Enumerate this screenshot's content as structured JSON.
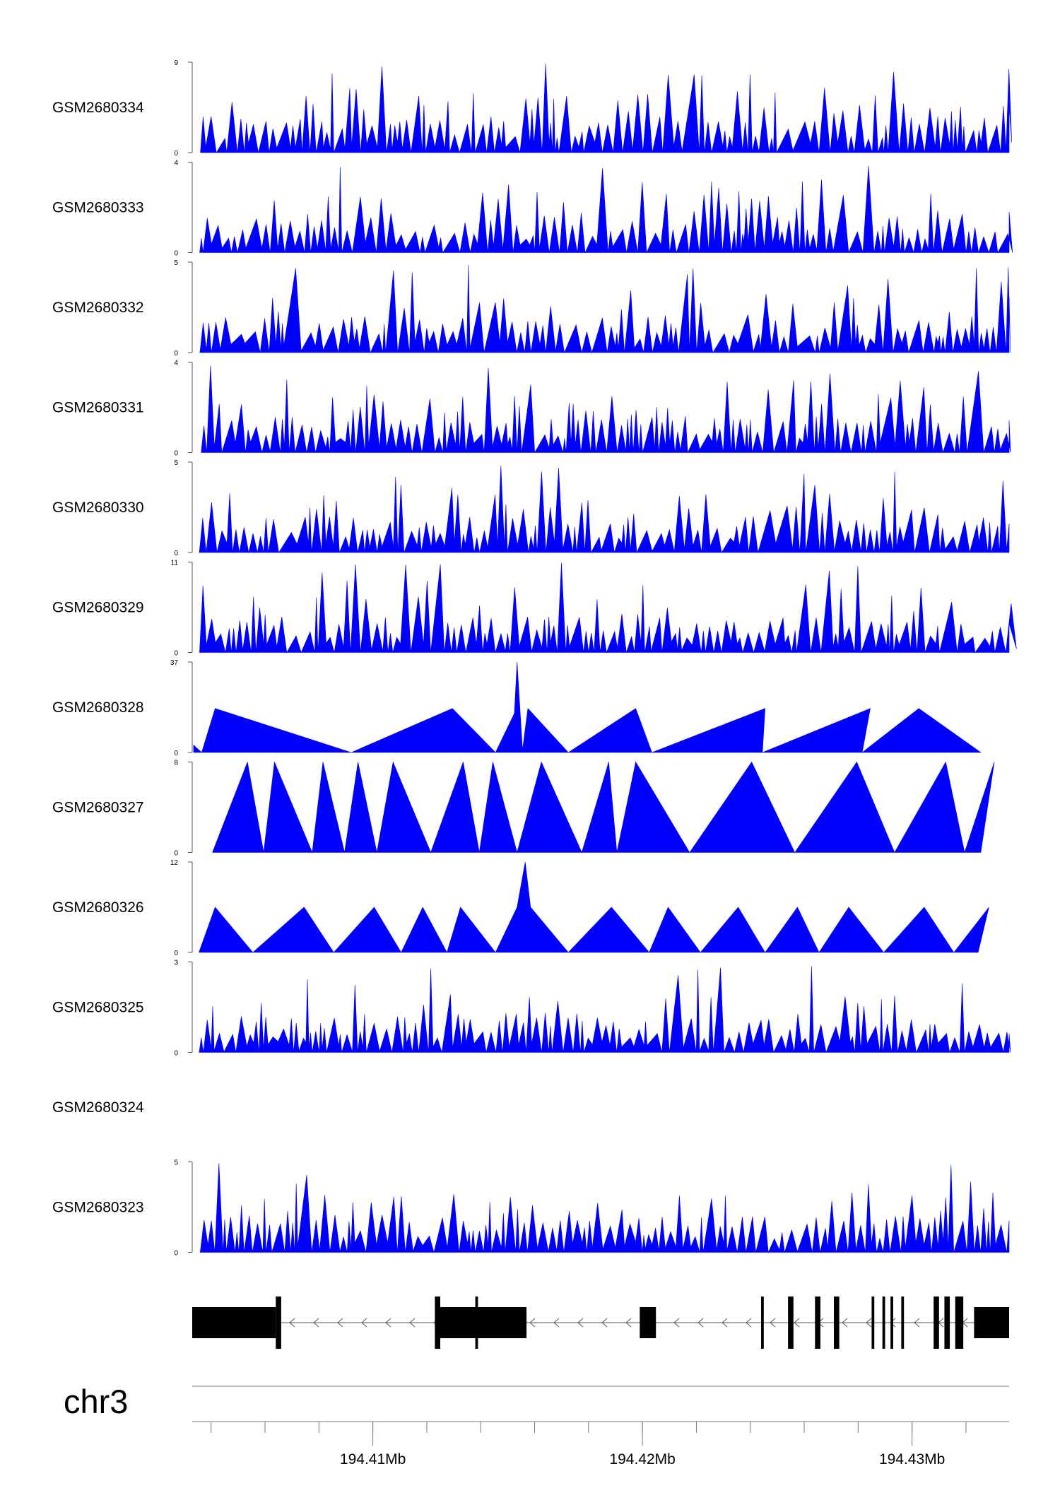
{
  "chart_data": {
    "type": "area",
    "title": "",
    "chromosome": "chr3",
    "x_range_mb": [
      194.4033,
      194.4336
    ],
    "x_tick_labels": [
      {
        "pos_mb": 194.41,
        "label": "194.41Mb"
      },
      {
        "pos_mb": 194.42,
        "label": "194.42Mb"
      },
      {
        "pos_mb": 194.43,
        "label": "194.43Mb"
      }
    ],
    "minor_ticks_mb": [
      194.404,
      194.406,
      194.408,
      194.41,
      194.412,
      194.414,
      194.416,
      194.418,
      194.42,
      194.422,
      194.424,
      194.426,
      194.428,
      194.43,
      194.432
    ],
    "fill_color": "#0000ff",
    "track_spacing_px": 141.5,
    "tracks": [
      {
        "sample": "GSM2680334",
        "ymax": 9,
        "ymin": 0,
        "ymax_label": "9",
        "ymin_label": "0"
      },
      {
        "sample": "GSM2680333",
        "ymax": 4,
        "ymin": 0,
        "ymax_label": "4",
        "ymin_label": "0"
      },
      {
        "sample": "GSM2680332",
        "ymax": 5,
        "ymin": 0,
        "ymax_label": "5",
        "ymin_label": "0"
      },
      {
        "sample": "GSM2680331",
        "ymax": 4,
        "ymin": 0,
        "ymax_label": "4",
        "ymin_label": "0"
      },
      {
        "sample": "GSM2680330",
        "ymax": 5,
        "ymin": 0,
        "ymax_label": "5",
        "ymin_label": "0"
      },
      {
        "sample": "GSM2680329",
        "ymax": 11,
        "ymin": 0,
        "ymax_label": "11",
        "ymin_label": "0"
      },
      {
        "sample": "GSM2680328",
        "ymax": 37,
        "ymin": 0,
        "ymax_label": "37",
        "ymin_label": "0"
      },
      {
        "sample": "GSM2680327",
        "ymax": 8,
        "ymin": 0,
        "ymax_label": "8",
        "ymin_label": "0"
      },
      {
        "sample": "GSM2680326",
        "ymax": 12,
        "ymin": 0,
        "ymax_label": "12",
        "ymin_label": "0"
      },
      {
        "sample": "GSM2680325",
        "ymax": 3,
        "ymin": 0,
        "ymax_label": "3",
        "ymin_label": "0"
      },
      {
        "sample": "GSM2680324",
        "ymax": null,
        "ymin": null,
        "ymax_label": "",
        "ymin_label": ""
      },
      {
        "sample": "GSM2680323",
        "ymax": 5,
        "ymin": 0,
        "ymax_label": "5",
        "ymin_label": "0"
      }
    ],
    "coverage": {
      "GSM2680328": [
        [
          194.40335,
          3
        ],
        [
          194.40365,
          0
        ],
        [
          194.40415,
          18
        ],
        [
          194.4092,
          0
        ],
        [
          194.41295,
          18
        ],
        [
          194.41455,
          0
        ],
        [
          194.41525,
          16
        ],
        [
          194.41535,
          37
        ],
        [
          194.41555,
          1
        ],
        [
          194.41575,
          18
        ],
        [
          194.41725,
          0
        ],
        [
          194.41975,
          18
        ],
        [
          194.42035,
          0
        ],
        [
          194.42455,
          18
        ],
        [
          194.42445,
          0
        ],
        [
          194.42845,
          18
        ],
        [
          194.42815,
          0
        ],
        [
          194.43025,
          18
        ],
        [
          194.43255,
          0
        ]
      ],
      "GSM2680327": [
        [
          194.40405,
          0
        ],
        [
          194.40535,
          8
        ],
        [
          194.40475,
          0
        ],
        [
          194.40535,
          8
        ],
        [
          194.40595,
          0
        ],
        [
          194.40635,
          8
        ],
        [
          194.40775,
          0
        ],
        [
          194.40815,
          8
        ],
        [
          194.40895,
          0
        ],
        [
          194.40945,
          8
        ],
        [
          194.41015,
          0
        ],
        [
          194.41075,
          8
        ],
        [
          194.41215,
          0
        ],
        [
          194.41335,
          8
        ],
        [
          194.41395,
          0
        ],
        [
          194.41445,
          8
        ],
        [
          194.41535,
          0
        ],
        [
          194.41625,
          8
        ],
        [
          194.41775,
          0
        ],
        [
          194.41875,
          8
        ],
        [
          194.41905,
          0
        ],
        [
          194.41975,
          8
        ],
        [
          194.42175,
          0
        ],
        [
          194.42405,
          8
        ],
        [
          194.42565,
          0
        ],
        [
          194.42795,
          8
        ],
        [
          194.42935,
          0
        ],
        [
          194.43125,
          8
        ],
        [
          194.43195,
          0
        ],
        [
          194.43305,
          8
        ],
        [
          194.43255,
          0
        ]
      ],
      "GSM2680326": [
        [
          194.40355,
          0
        ],
        [
          194.40415,
          6
        ],
        [
          194.40555,
          0
        ],
        [
          194.40745,
          6
        ],
        [
          194.40855,
          0
        ],
        [
          194.41005,
          6
        ],
        [
          194.41105,
          0
        ],
        [
          194.41185,
          6
        ],
        [
          194.41275,
          0
        ],
        [
          194.41325,
          6
        ],
        [
          194.41455,
          0
        ],
        [
          194.41535,
          6
        ],
        [
          194.41565,
          12
        ],
        [
          194.41585,
          6
        ],
        [
          194.41725,
          0
        ],
        [
          194.41885,
          6
        ],
        [
          194.42025,
          0
        ],
        [
          194.42095,
          6
        ],
        [
          194.42215,
          0
        ],
        [
          194.42355,
          6
        ],
        [
          194.42455,
          0
        ],
        [
          194.42575,
          6
        ],
        [
          194.42655,
          0
        ],
        [
          194.42765,
          6
        ],
        [
          194.42895,
          0
        ],
        [
          194.43045,
          6
        ],
        [
          194.43155,
          0
        ],
        [
          194.43285,
          6
        ],
        [
          194.43245,
          0
        ]
      ]
    },
    "gene_model": {
      "strand": "-",
      "exons_mb": [
        [
          194.4033,
          194.4064
        ],
        [
          194.4064,
          194.4066
        ],
        [
          194.4123,
          194.4125
        ],
        [
          194.4125,
          194.4157
        ],
        [
          194.4138,
          194.4139
        ],
        [
          194.4199,
          194.4205
        ],
        [
          194.4244,
          194.4245
        ],
        [
          194.4254,
          194.4256
        ],
        [
          194.4264,
          194.4266
        ],
        [
          194.4271,
          194.4273
        ],
        [
          194.4285,
          194.4286
        ],
        [
          194.4289,
          194.429
        ],
        [
          194.4292,
          194.4293
        ],
        [
          194.4296,
          194.4297
        ],
        [
          194.4308,
          194.431
        ],
        [
          194.4312,
          194.4314
        ],
        [
          194.4316,
          194.4319
        ],
        [
          194.4323,
          194.4336
        ]
      ]
    }
  }
}
